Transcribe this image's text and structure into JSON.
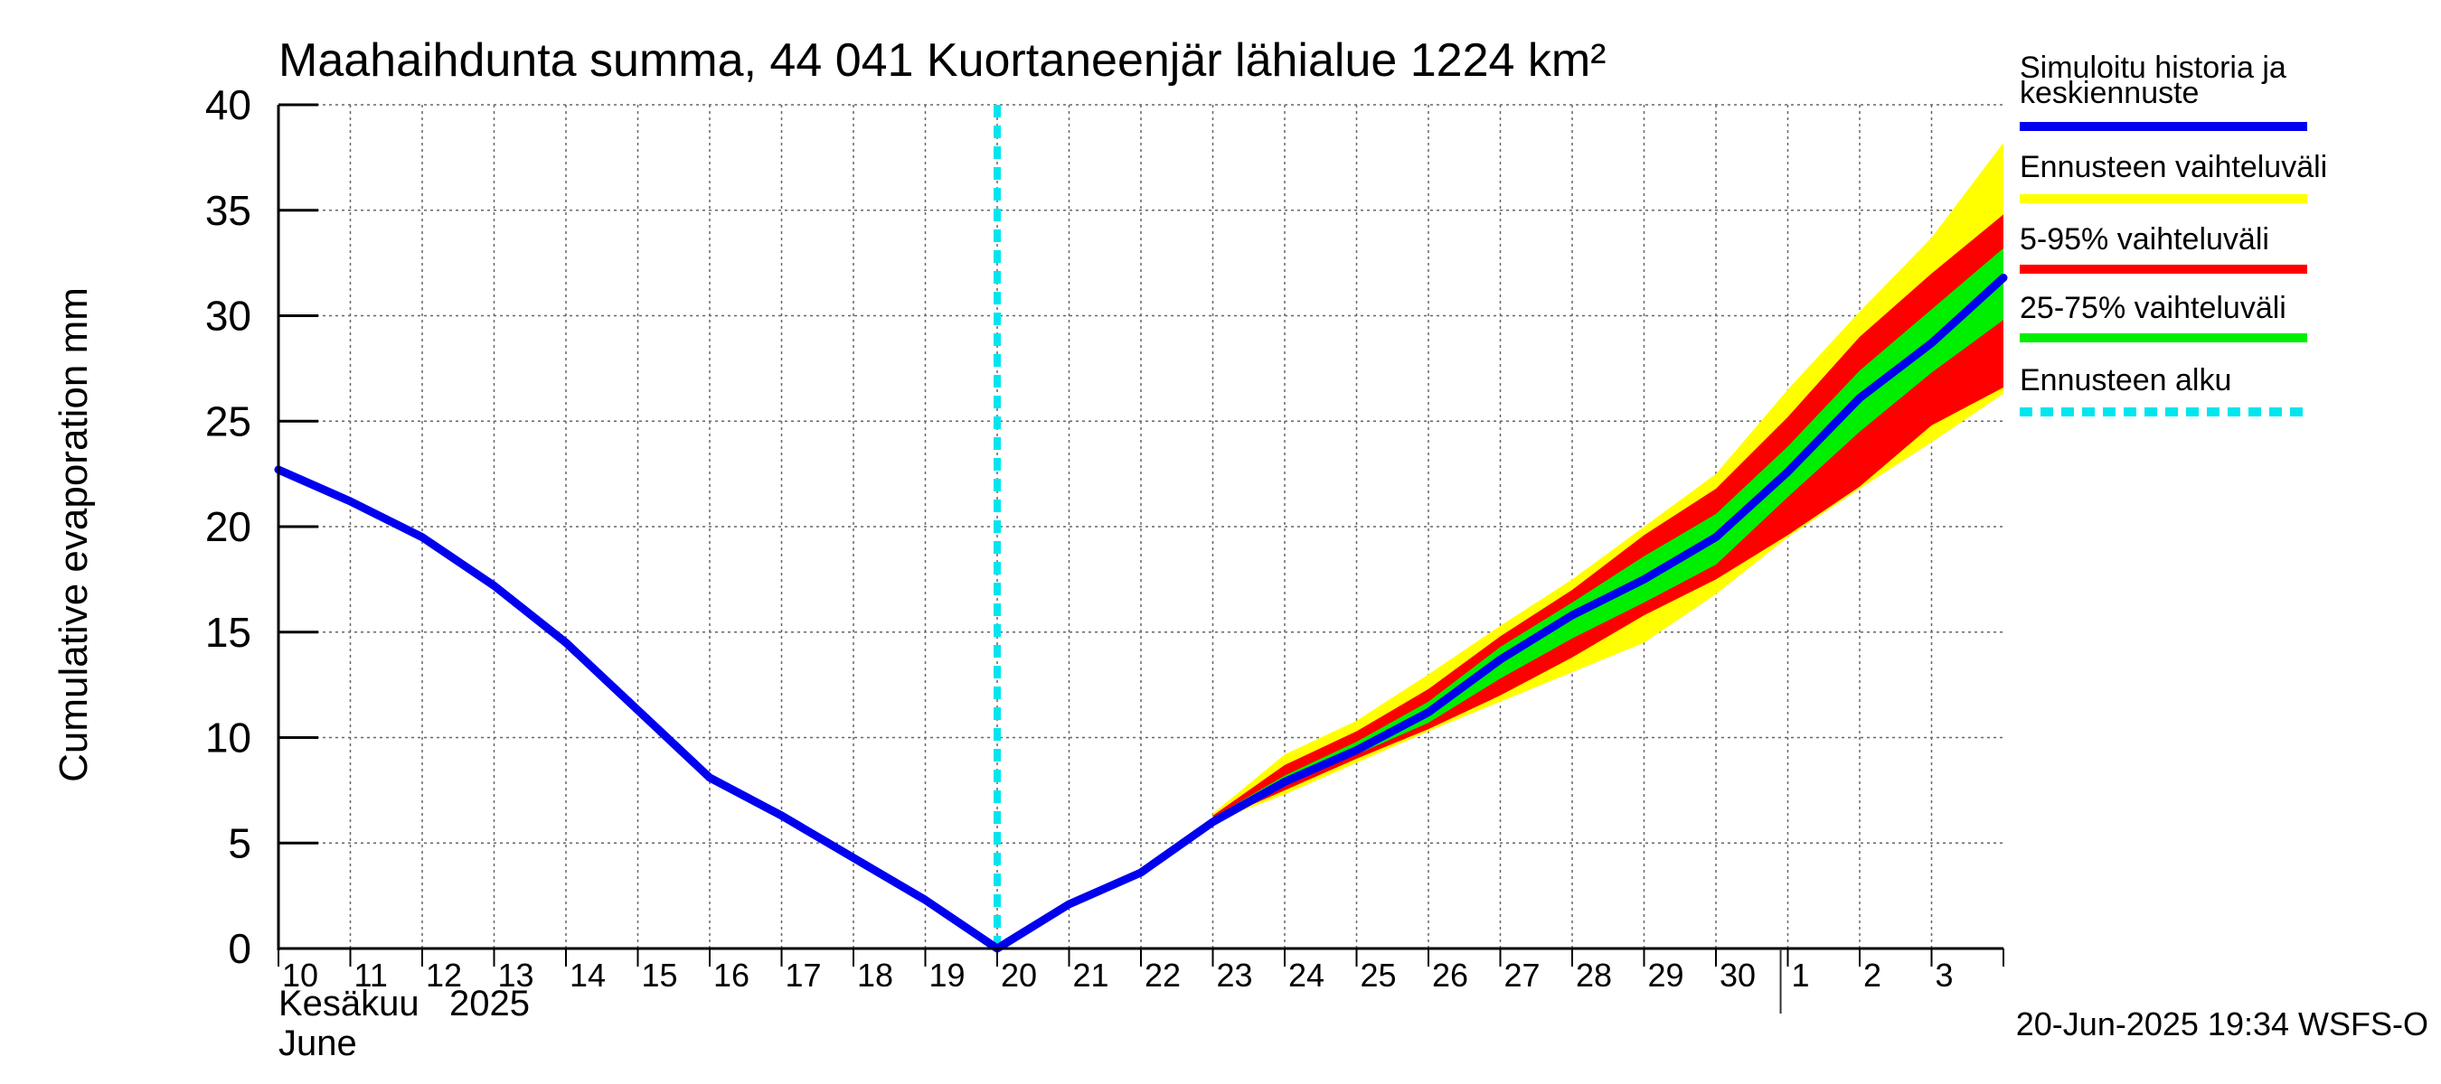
{
  "chart_data": {
    "type": "area",
    "title": "Maahaihdunta summa, 44 041 Kuortaneenjär lähialue 1224 km²",
    "ylabel": "Cumulative evaporation   mm",
    "xlabel_line1": "Kesäkuu   2025",
    "xlabel_line2": "June",
    "timestamp": "20-Jun-2025 19:34 WSFS-O",
    "ylim": [
      0,
      40
    ],
    "yticks": [
      0,
      5,
      10,
      15,
      20,
      25,
      30,
      35,
      40
    ],
    "xlim": [
      0,
      24
    ],
    "xticks": [
      {
        "x": 0,
        "label": "10"
      },
      {
        "x": 1,
        "label": "11"
      },
      {
        "x": 2,
        "label": "12"
      },
      {
        "x": 3,
        "label": "13"
      },
      {
        "x": 4,
        "label": "14"
      },
      {
        "x": 5,
        "label": "15"
      },
      {
        "x": 6,
        "label": "16"
      },
      {
        "x": 7,
        "label": "17"
      },
      {
        "x": 8,
        "label": "18"
      },
      {
        "x": 9,
        "label": "19"
      },
      {
        "x": 10,
        "label": "20"
      },
      {
        "x": 11,
        "label": "21"
      },
      {
        "x": 12,
        "label": "22"
      },
      {
        "x": 13,
        "label": "23"
      },
      {
        "x": 14,
        "label": "24"
      },
      {
        "x": 15,
        "label": "25"
      },
      {
        "x": 16,
        "label": "26"
      },
      {
        "x": 17,
        "label": "27"
      },
      {
        "x": 18,
        "label": "28"
      },
      {
        "x": 19,
        "label": "29"
      },
      {
        "x": 20,
        "label": "30"
      },
      {
        "x": 21,
        "label": "1"
      },
      {
        "x": 22,
        "label": "2"
      },
      {
        "x": 23,
        "label": "3"
      }
    ],
    "month_divider_x": 20.9,
    "forecast_start_x": 10,
    "legend": [
      {
        "key": "median",
        "label_lines": [
          "Simuloitu historia ja",
          "keskiennuste"
        ],
        "color": "#0000ee"
      },
      {
        "key": "full",
        "label_lines": [
          "Ennusteen vaihteluväli"
        ],
        "color": "#ffff00"
      },
      {
        "key": "p5_95",
        "label_lines": [
          "5-95% vaihteluväli"
        ],
        "color": "#ff0000"
      },
      {
        "key": "p25_75",
        "label_lines": [
          "25-75% vaihteluväli"
        ],
        "color": "#00ee00"
      },
      {
        "key": "start",
        "label_lines": [
          "Ennusteen alku"
        ],
        "color": "#00e5ee"
      }
    ],
    "series": [
      {
        "key": "median",
        "x": [
          0,
          1,
          2,
          3,
          4,
          5,
          6,
          7,
          8,
          9,
          10,
          11,
          12,
          13,
          14,
          15,
          16,
          17,
          18,
          19,
          20,
          21,
          22,
          23,
          24
        ],
        "values": [
          22.7,
          21.2,
          19.5,
          17.2,
          14.5,
          11.3,
          8.1,
          6.3,
          4.3,
          2.3,
          0.0,
          2.1,
          3.6,
          6.0,
          7.9,
          9.4,
          11.2,
          13.7,
          15.8,
          17.5,
          19.5,
          22.6,
          26.1,
          28.7,
          31.8
        ]
      }
    ],
    "bands": [
      {
        "key": "full",
        "x": [
          13,
          14,
          15,
          16,
          17,
          18,
          19,
          20,
          21,
          22,
          23,
          24
        ],
        "low": [
          6.0,
          7.3,
          8.8,
          10.3,
          11.7,
          13.1,
          14.5,
          16.8,
          19.5,
          21.8,
          24.0,
          26.3
        ],
        "high": [
          6.4,
          9.2,
          10.8,
          13.0,
          15.3,
          17.5,
          20.0,
          22.5,
          26.5,
          30.2,
          33.7,
          38.2
        ]
      },
      {
        "key": "p5_95",
        "x": [
          13,
          14,
          15,
          16,
          17,
          18,
          19,
          20,
          21,
          22,
          23,
          24
        ],
        "low": [
          6.0,
          7.5,
          9.0,
          10.4,
          12.0,
          13.8,
          15.8,
          17.5,
          19.6,
          21.9,
          24.8,
          26.6
        ],
        "high": [
          6.3,
          8.7,
          10.3,
          12.3,
          14.8,
          17.0,
          19.6,
          21.8,
          25.2,
          29.0,
          32.0,
          34.8
        ]
      },
      {
        "key": "p25_75",
        "x": [
          13,
          14,
          15,
          16,
          17,
          18,
          19,
          20,
          21,
          22,
          23,
          24
        ],
        "low": [
          6.0,
          7.7,
          9.2,
          10.7,
          12.8,
          14.7,
          16.4,
          18.2,
          21.4,
          24.5,
          27.3,
          29.8
        ],
        "high": [
          6.2,
          8.2,
          9.8,
          11.7,
          14.3,
          16.4,
          18.6,
          20.6,
          23.8,
          27.4,
          30.3,
          33.2
        ]
      }
    ]
  }
}
